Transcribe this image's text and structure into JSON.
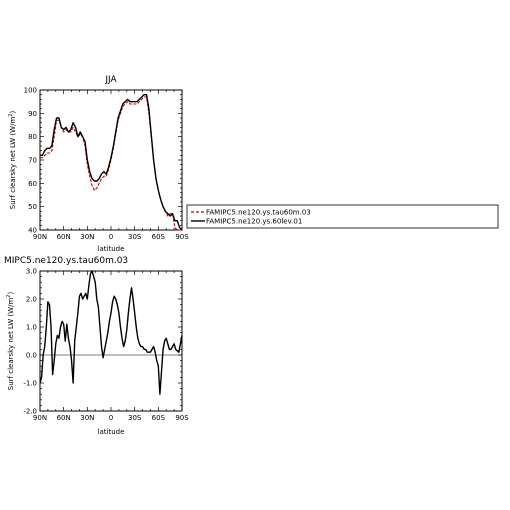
{
  "chart_data": [
    {
      "type": "line",
      "title": "JJA",
      "xlabel": "latitude",
      "ylabel": "Surf clearsky net LW (W/m",
      "ylabel_sup": "2",
      "ylabel_end": ")",
      "xlim": [
        90,
        -90
      ],
      "ylim": [
        40,
        100
      ],
      "xticks": [
        {
          "v": 90,
          "label": "90N"
        },
        {
          "v": 60,
          "label": "60N"
        },
        {
          "v": 30,
          "label": "30N"
        },
        {
          "v": 0,
          "label": "0"
        },
        {
          "v": -30,
          "label": "30S"
        },
        {
          "v": -60,
          "label": "60S"
        },
        {
          "v": -90,
          "label": "90S"
        }
      ],
      "yticks": [
        {
          "v": 40,
          "label": "40"
        },
        {
          "v": 50,
          "label": "50"
        },
        {
          "v": 60,
          "label": "60"
        },
        {
          "v": 70,
          "label": "70"
        },
        {
          "v": 80,
          "label": "80"
        },
        {
          "v": 90,
          "label": "90"
        },
        {
          "v": 100,
          "label": "100"
        }
      ],
      "legend_position": "right",
      "series": [
        {
          "name": "FAMIPC5.ne120.ys.tau60m.03",
          "color": "#cc0000",
          "dashed": true,
          "x": [
            90,
            87,
            84,
            81,
            78,
            75,
            72,
            69,
            66,
            63,
            60,
            57,
            54,
            51,
            48,
            45,
            42,
            39,
            36,
            33,
            30,
            27,
            24,
            21,
            18,
            15,
            12,
            9,
            6,
            3,
            0,
            -3,
            -6,
            -9,
            -12,
            -15,
            -18,
            -21,
            -24,
            -27,
            -30,
            -33,
            -36,
            -39,
            -42,
            -45,
            -48,
            -51,
            -54,
            -57,
            -60,
            -63,
            -66,
            -69,
            -72,
            -75,
            -78,
            -81,
            -84,
            -87,
            -90
          ],
          "y": [
            71,
            71,
            72,
            73,
            73,
            74,
            80,
            87,
            87,
            84,
            82,
            83,
            82,
            82,
            84,
            82,
            80,
            81,
            80,
            76,
            68,
            63,
            59,
            57,
            58,
            60,
            62,
            63,
            63,
            66,
            70,
            75,
            81,
            87,
            90,
            93,
            94,
            95,
            94,
            94,
            94,
            94,
            95,
            96,
            97,
            97,
            90,
            80,
            70,
            62,
            57,
            53,
            50,
            48,
            46,
            47,
            47,
            41,
            40,
            40,
            40
          ]
        },
        {
          "name": "FAMIPC5.ne120.ys.60lev.01",
          "color": "#000000",
          "dashed": false,
          "x": [
            90,
            87,
            84,
            81,
            78,
            75,
            72,
            69,
            66,
            63,
            60,
            57,
            54,
            51,
            48,
            45,
            42,
            39,
            36,
            33,
            30,
            27,
            24,
            21,
            18,
            15,
            12,
            9,
            6,
            3,
            0,
            -3,
            -6,
            -9,
            -12,
            -15,
            -18,
            -21,
            -24,
            -27,
            -30,
            -33,
            -36,
            -39,
            -42,
            -45,
            -48,
            -51,
            -54,
            -57,
            -60,
            -63,
            -66,
            -69,
            -72,
            -75,
            -78,
            -81,
            -84,
            -87,
            -90
          ],
          "y": [
            72,
            72,
            74,
            75,
            75,
            76,
            83,
            88,
            88,
            84,
            83,
            84,
            82,
            83,
            86,
            84,
            80,
            82,
            80,
            78,
            70,
            65,
            62,
            61,
            61,
            62,
            64,
            65,
            64,
            67,
            71,
            76,
            82,
            88,
            91,
            94,
            95,
            96,
            95,
            95,
            95,
            95,
            96,
            97,
            98,
            98,
            92,
            81,
            70,
            62,
            57,
            53,
            50,
            48,
            47,
            46,
            47,
            44,
            44,
            41,
            40
          ]
        }
      ]
    },
    {
      "type": "line",
      "title": "MIPC5.ne120.ys.tau60m.03",
      "xlabel": "latitude",
      "ylabel": "Surf clearsky net LW (W/m",
      "ylabel_sup": "2",
      "ylabel_end": ")",
      "xlim": [
        90,
        -90
      ],
      "ylim": [
        -2,
        3
      ],
      "xticks": [
        {
          "v": 90,
          "label": "90N"
        },
        {
          "v": 60,
          "label": "60N"
        },
        {
          "v": 30,
          "label": "30N"
        },
        {
          "v": 0,
          "label": "0"
        },
        {
          "v": -30,
          "label": "30S"
        },
        {
          "v": -60,
          "label": "60S"
        },
        {
          "v": -90,
          "label": "90S"
        }
      ],
      "yticks": [
        {
          "v": -2,
          "label": "-2.0"
        },
        {
          "v": -1,
          "label": "-1.0"
        },
        {
          "v": 0,
          "label": "0.0"
        },
        {
          "v": 1,
          "label": "1.0"
        },
        {
          "v": 2,
          "label": "2.0"
        },
        {
          "v": 3,
          "label": "3.0"
        }
      ],
      "series": [
        {
          "name": "",
          "color": "#000000",
          "dashed": false,
          "x": [
            90,
            88,
            86,
            84,
            82,
            80,
            78,
            76,
            74,
            72,
            70,
            68,
            66,
            64,
            62,
            60,
            58,
            56,
            54,
            52,
            50,
            48,
            46,
            44,
            42,
            40,
            38,
            36,
            34,
            32,
            30,
            28,
            26,
            24,
            22,
            20,
            18,
            16,
            14,
            12,
            10,
            8,
            6,
            4,
            2,
            0,
            -2,
            -4,
            -6,
            -8,
            -10,
            -12,
            -14,
            -16,
            -18,
            -20,
            -22,
            -24,
            -26,
            -28,
            -30,
            -32,
            -34,
            -36,
            -38,
            -40,
            -42,
            -44,
            -46,
            -48,
            -50,
            -52,
            -54,
            -56,
            -58,
            -60,
            -62,
            -64,
            -66,
            -68,
            -70,
            -72,
            -74,
            -76,
            -78,
            -80,
            -82,
            -84,
            -86,
            -88,
            -90
          ],
          "y": [
            -1.0,
            -0.8,
            0.0,
            0.3,
            1.0,
            1.9,
            1.8,
            1.0,
            -0.7,
            -0.2,
            0.4,
            0.7,
            0.6,
            1.0,
            1.2,
            1.1,
            0.5,
            1.1,
            0.6,
            0.3,
            -0.2,
            -1.0,
            0.5,
            1.0,
            1.5,
            2.1,
            2.2,
            2.0,
            2.1,
            2.2,
            2.0,
            2.5,
            2.9,
            3.0,
            2.8,
            2.6,
            2.0,
            1.7,
            1.0,
            0.3,
            -0.1,
            0.2,
            0.5,
            0.8,
            1.2,
            1.5,
            1.9,
            2.1,
            2.0,
            1.8,
            1.5,
            1.0,
            0.6,
            0.3,
            0.5,
            0.9,
            1.5,
            2.0,
            2.4,
            2.0,
            1.5,
            1.0,
            0.6,
            0.4,
            0.3,
            0.3,
            0.2,
            0.2,
            0.1,
            0.1,
            0.1,
            0.2,
            0.3,
            0.1,
            -0.2,
            -0.4,
            -1.4,
            -0.6,
            0.2,
            0.5,
            0.6,
            0.4,
            0.2,
            0.2,
            0.3,
            0.4,
            0.2,
            0.15,
            0.1,
            0.4,
            0.7
          ]
        }
      ]
    }
  ]
}
